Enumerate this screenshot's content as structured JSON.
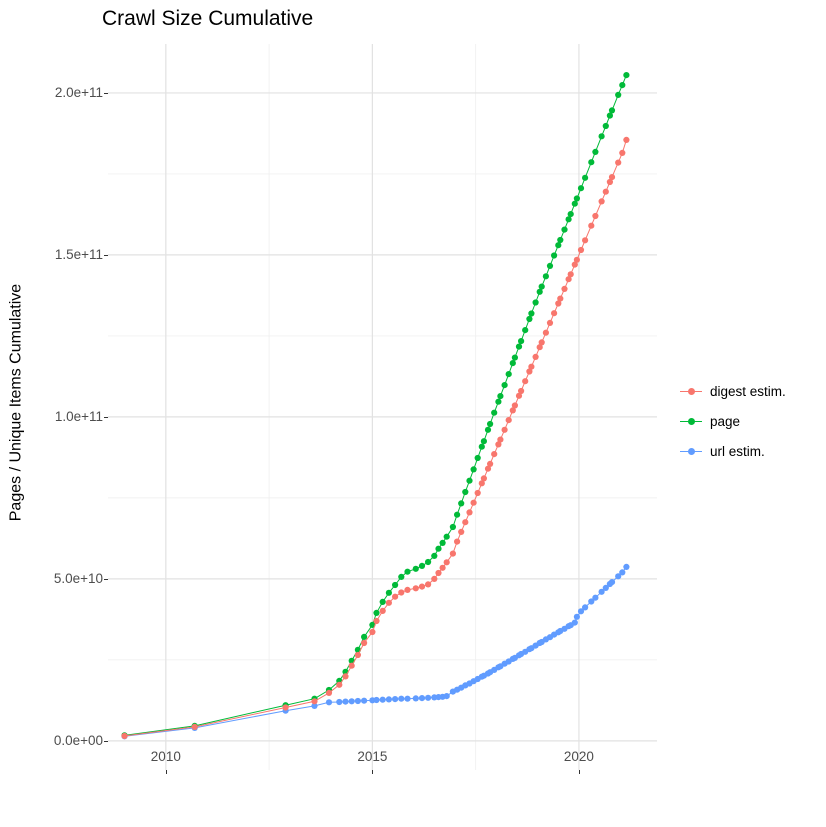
{
  "title": "Crawl Size Cumulative",
  "chart_data": {
    "type": "line",
    "title": "Crawl Size Cumulative",
    "xlabel": "",
    "ylabel": "Pages / Unique Items Cumulative",
    "legend_position": "right",
    "grid": true,
    "background": "#ffffff",
    "grid_major_color": "#e2e2e2",
    "grid_minor_color": "#f0f0f0",
    "tick_label_color": "#4d4d4d",
    "xlim": [
      2008.6,
      2021.89
    ],
    "ylim": [
      -9000000000.0,
      215100000000.0
    ],
    "x_ticks": [
      2010,
      2015,
      2020
    ],
    "x_tick_labels": [
      "2010",
      "2015",
      "2020"
    ],
    "x_minor": [
      2012.5,
      2017.5
    ],
    "y_ticks": [
      0,
      50000000000.0,
      100000000000.0,
      150000000000.0,
      200000000000.0
    ],
    "y_tick_labels": [
      "0.0e+00",
      "5.0e+10",
      "1.0e+11",
      "1.5e+11",
      "2.0e+11"
    ],
    "y_minor": [
      25000000000.0,
      75000000000.0,
      125000000000.0,
      175000000000.0
    ],
    "x": [
      2009.0,
      2010.7,
      2012.9,
      2013.6,
      2013.95,
      2014.2,
      2014.35,
      2014.5,
      2014.65,
      2014.8,
      2015.0,
      2015.1,
      2015.25,
      2015.4,
      2015.55,
      2015.7,
      2015.85,
      2016.05,
      2016.2,
      2016.35,
      2016.5,
      2016.6,
      2016.7,
      2016.8,
      2016.95,
      2017.05,
      2017.15,
      2017.25,
      2017.35,
      2017.45,
      2017.55,
      2017.65,
      2017.7,
      2017.8,
      2017.85,
      2017.95,
      2018.05,
      2018.1,
      2018.2,
      2018.3,
      2018.4,
      2018.45,
      2018.55,
      2018.6,
      2018.7,
      2018.8,
      2018.85,
      2018.95,
      2019.05,
      2019.1,
      2019.2,
      2019.3,
      2019.4,
      2019.5,
      2019.55,
      2019.65,
      2019.75,
      2019.8,
      2019.9,
      2019.95,
      2020.05,
      2020.15,
      2020.3,
      2020.4,
      2020.55,
      2020.65,
      2020.75,
      2020.8,
      2020.95,
      2021.05,
      2021.15
    ],
    "series": [
      {
        "name": "digest estim.",
        "color": "#F8766D",
        "values": [
          1500000000.0,
          4300000000.0,
          10300000000.0,
          12200000000.0,
          14800000000.0,
          17300000000.0,
          19900000000.0,
          23200000000.0,
          26500000000.0,
          30200000000.0,
          33600000000.0,
          37000000000.0,
          40100000000.0,
          42600000000.0,
          44500000000.0,
          45800000000.0,
          46600000000.0,
          47100000000.0,
          47600000000.0,
          48300000000.0,
          50000000000.0,
          51800000000.0,
          53400000000.0,
          55100000000.0,
          57800000000.0,
          61500000000.0,
          64500000000.0,
          67500000000.0,
          70500000000.0,
          73500000000.0,
          76500000000.0,
          79500000000.0,
          81000000000.0,
          84000000000.0,
          85500000000.0,
          88500000000.0,
          91500000000.0,
          93000000000.0,
          96000000000.0,
          99000000000.0,
          102000000000.0,
          103500000000.0,
          106500000000.0,
          108000000000.0,
          111000000000.0,
          114000000000.0,
          115500000000.0,
          118500000000.0,
          121500000000.0,
          123000000000.0,
          126000000000.0,
          129000000000.0,
          132000000000.0,
          135000000000.0,
          136500000000.0,
          139500000000.0,
          142500000000.0,
          144000000000.0,
          147000000000.0,
          148500000000.0,
          151500000000.0,
          154500000000.0,
          159000000000.0,
          162000000000.0,
          166500000000.0,
          169500000000.0,
          172500000000.0,
          174000000000.0,
          178500000000.0,
          181500000000.0,
          185500000000.0
        ]
      },
      {
        "name": "page",
        "color": "#00BA38",
        "values": [
          1700000000.0,
          4600000000.0,
          11000000000.0,
          13000000000.0,
          15700000000.0,
          18500000000.0,
          21300000000.0,
          24700000000.0,
          28100000000.0,
          32100000000.0,
          35800000000.0,
          39500000000.0,
          42900000000.0,
          45700000000.0,
          48100000000.0,
          50600000000.0,
          52200000000.0,
          53100000000.0,
          54000000000.0,
          55200000000.0,
          57100000000.0,
          59300000000.0,
          61100000000.0,
          63000000000.0,
          66000000000.0,
          69800000000.0,
          73300000000.0,
          76800000000.0,
          80300000000.0,
          83800000000.0,
          87300000000.0,
          90800000000.0,
          92500000000.0,
          96000000000.0,
          97800000000.0,
          101300000000.0,
          104700000000.0,
          106400000000.0,
          109800000000.0,
          113200000000.0,
          116600000000.0,
          118300000000.0,
          121700000000.0,
          123400000000.0,
          126800000000.0,
          130200000000.0,
          131900000000.0,
          135300000000.0,
          138600000000.0,
          140200000000.0,
          143400000000.0,
          146600000000.0,
          149800000000.0,
          153000000000.0,
          154600000000.0,
          157800000000.0,
          161000000000.0,
          162600000000.0,
          165800000000.0,
          167400000000.0,
          170600000000.0,
          173800000000.0,
          178600000000.0,
          181800000000.0,
          186600000000.0,
          189800000000.0,
          193000000000.0,
          194600000000.0,
          199400000000.0,
          202400000000.0,
          205500000000.0
        ]
      },
      {
        "name": "url estim.",
        "color": "#619CFF",
        "values": [
          1400000000.0,
          4000000000.0,
          9300000000.0,
          10800000000.0,
          11900000000.0,
          12000000000.0,
          12100000000.0,
          12200000000.0,
          12300000000.0,
          12400000000.0,
          12500000000.0,
          12600000000.0,
          12700000000.0,
          12800000000.0,
          12900000000.0,
          13000000000.0,
          13000000000.0,
          13100000000.0,
          13200000000.0,
          13300000000.0,
          13400000000.0,
          13500000000.0,
          13600000000.0,
          13800000000.0,
          15200000000.0,
          15800000000.0,
          16400000000.0,
          17100000000.0,
          17700000000.0,
          18400000000.0,
          19100000000.0,
          19800000000.0,
          20100000000.0,
          20800000000.0,
          21200000000.0,
          21900000000.0,
          22700000000.0,
          23000000000.0,
          23800000000.0,
          24500000000.0,
          25300000000.0,
          25600000000.0,
          26400000000.0,
          26800000000.0,
          27500000000.0,
          28300000000.0,
          28600000000.0,
          29400000000.0,
          30200000000.0,
          30500000000.0,
          31300000000.0,
          32000000000.0,
          32800000000.0,
          33500000000.0,
          33900000000.0,
          34600000000.0,
          35400000000.0,
          35700000000.0,
          36500000000.0,
          38300000000.0,
          40000000000.0,
          41200000000.0,
          43000000000.0,
          44200000000.0,
          46000000000.0,
          47200000000.0,
          48400000000.0,
          49000000000.0,
          50800000000.0,
          52000000000.0,
          53700000000.0
        ]
      }
    ]
  }
}
